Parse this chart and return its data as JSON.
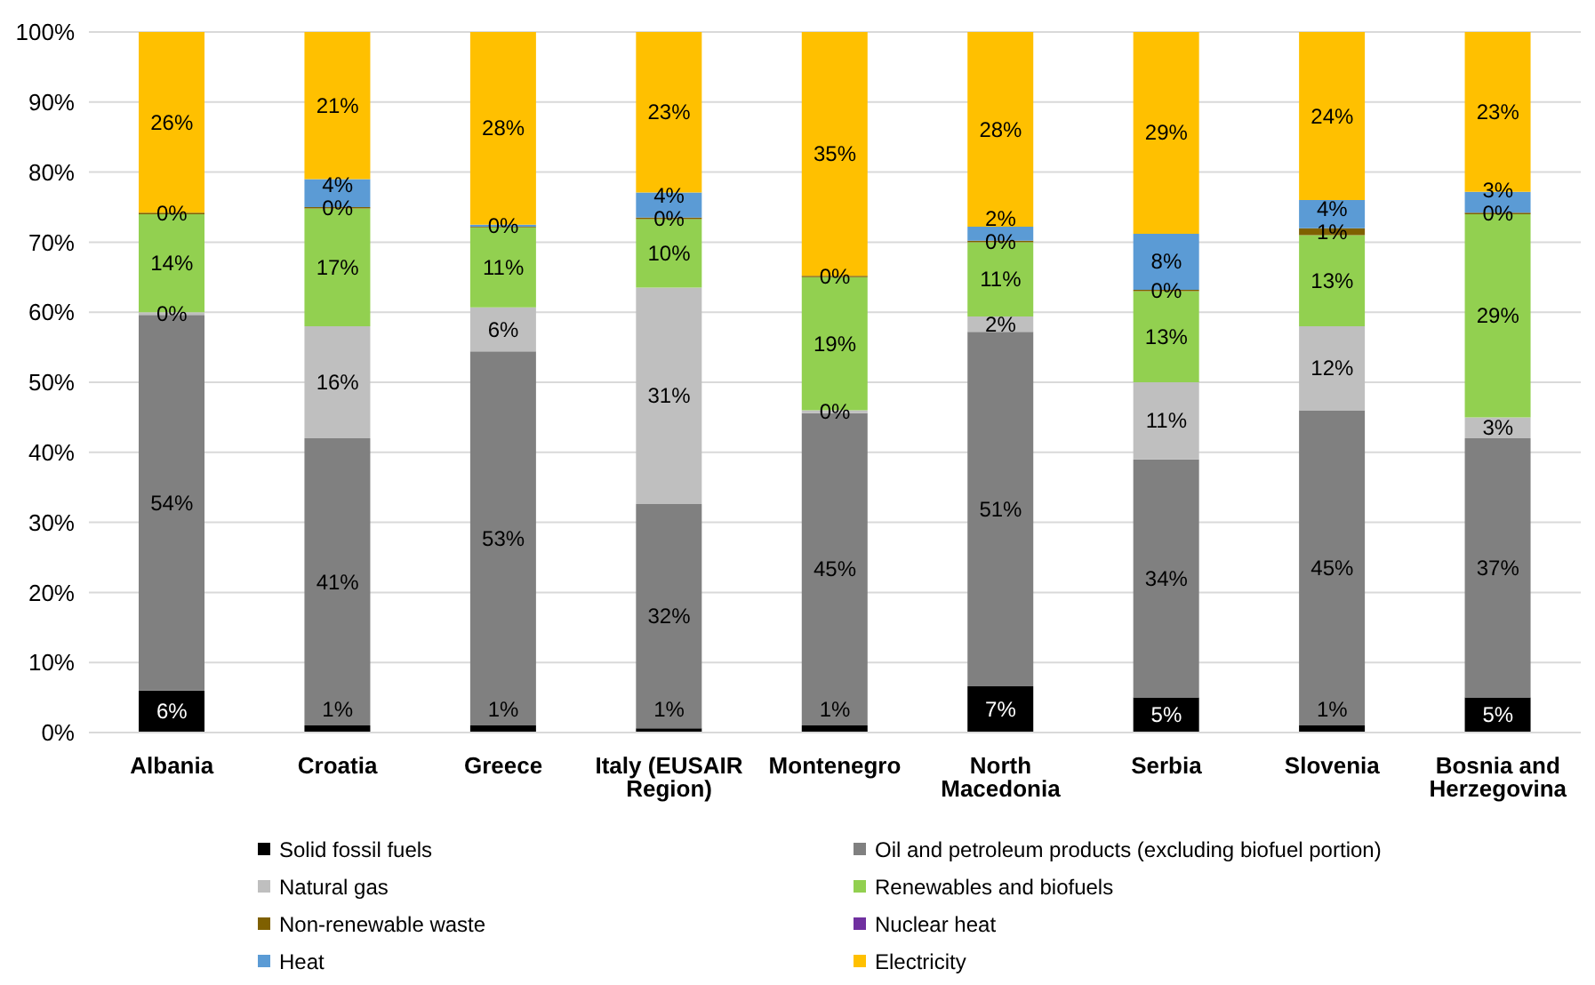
{
  "chart_data": {
    "type": "bar",
    "stacked": true,
    "categories": [
      "Albania",
      "Croatia",
      "Greece",
      "Italy (EUSAIR Region)",
      "Montenegro",
      "North Macedonia",
      "Serbia",
      "Slovenia",
      "Bosnia and Herzegovina"
    ],
    "series": [
      {
        "name": "Solid fossil fuels",
        "color": "#000000",
        "values": [
          6,
          1,
          1.0,
          0.6,
          1,
          6.6,
          5,
          1,
          5
        ],
        "value_labels": [
          "6%",
          "1%",
          "1%",
          "1%",
          "1%",
          "7%",
          "5%",
          "1%",
          "5%"
        ]
      },
      {
        "name": "Oil and petroleum products (excluding biofuel portion)",
        "color": "#808080",
        "values": [
          53.6,
          41,
          53.4,
          32.0,
          44.6,
          50.6,
          34,
          45,
          37
        ],
        "value_labels": [
          "54%",
          "41%",
          "53%",
          "32%",
          "45%",
          "51%",
          "34%",
          "45%",
          "37%"
        ]
      },
      {
        "name": "Natural gas",
        "color": "#bfbfbf",
        "values": [
          0.4,
          16,
          6.3,
          30.9,
          0.4,
          2.2,
          11,
          12,
          3
        ],
        "value_labels": [
          "0%",
          "16%",
          "6%",
          "31%",
          "0%",
          "2%",
          "11%",
          "12%",
          "3%"
        ]
      },
      {
        "name": "Renewables and biofuels",
        "color": "#92d050",
        "values": [
          14,
          16.8,
          11.4,
          9.8,
          19,
          10.6,
          13,
          13,
          29
        ],
        "value_labels": [
          "14%",
          "17%",
          "11%",
          "10%",
          "19%",
          "11%",
          "13%",
          "13%",
          "29%"
        ]
      },
      {
        "name": "Non-renewable waste",
        "color": "#7f6000",
        "values": [
          0.2,
          0.2,
          0.1,
          0.2,
          0.2,
          0.2,
          0.2,
          1,
          0.2
        ],
        "value_labels": [
          "0%",
          "0%",
          null,
          "0%",
          "0%",
          "0%",
          "0%",
          "1%",
          "0%"
        ]
      },
      {
        "name": "Nuclear heat",
        "color": "#7030a0",
        "values": [
          0,
          0,
          0,
          0,
          0,
          0,
          0,
          0,
          0
        ],
        "value_labels": [
          null,
          null,
          null,
          null,
          null,
          null,
          null,
          null,
          null
        ]
      },
      {
        "name": "Heat",
        "color": "#5b9bd5",
        "values": [
          0,
          4,
          0.3,
          3.6,
          0,
          2.0,
          8,
          4,
          3
        ],
        "value_labels": [
          null,
          "4%",
          "0%",
          "4%",
          null,
          "2%",
          "8%",
          "4%",
          "3%"
        ]
      },
      {
        "name": "Electricity",
        "color": "#ffc000",
        "values": [
          25.8,
          21,
          27.5,
          22.9,
          34.8,
          27.8,
          28.8,
          24,
          22.8
        ],
        "value_labels": [
          "26%",
          "21%",
          "28%",
          "23%",
          "35%",
          "28%",
          "29%",
          "24%",
          "23%"
        ]
      }
    ],
    "ylim": [
      0,
      100
    ],
    "yticks": [
      {
        "value": 0,
        "label": "0%"
      },
      {
        "value": 10,
        "label": "10%"
      },
      {
        "value": 20,
        "label": "20%"
      },
      {
        "value": 30,
        "label": "30%"
      },
      {
        "value": 40,
        "label": "40%"
      },
      {
        "value": 50,
        "label": "50%"
      },
      {
        "value": 60,
        "label": "60%"
      },
      {
        "value": 70,
        "label": "70%"
      },
      {
        "value": 80,
        "label": "80%"
      },
      {
        "value": 90,
        "label": "90%"
      },
      {
        "value": 100,
        "label": "100%"
      }
    ],
    "grid": "y",
    "legend": "bottom"
  }
}
